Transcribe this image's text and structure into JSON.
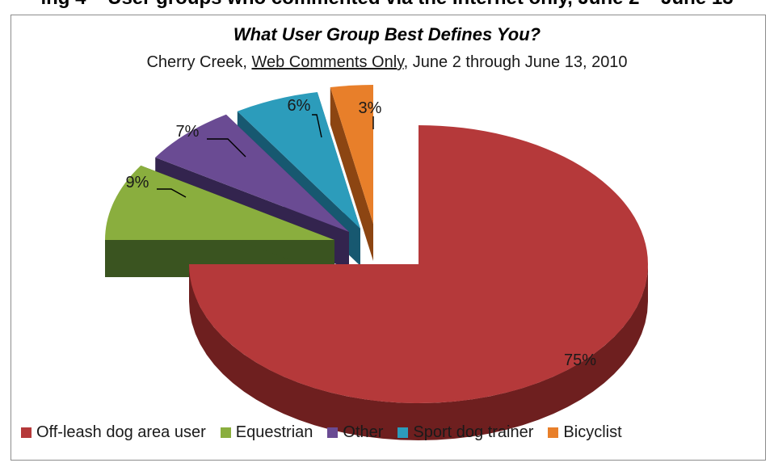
{
  "caption": "ing 4 – User groups who commented via the Internet only, June 2 – June 13",
  "chart_data": {
    "type": "pie",
    "title": "What User Group Best Defines You?",
    "subtitle": {
      "prefix": "Cherry Creek, ",
      "underlined": "Web Comments Only",
      "suffix": ", June 2 through June 13, 2010"
    },
    "categories": [
      "Off-leash dog area user",
      "Equestrian",
      "Other",
      "Sport dog trainer",
      "Bicyclist"
    ],
    "values": [
      75,
      9,
      7,
      6,
      3
    ],
    "labels": [
      "75%",
      "9%",
      "7%",
      "6%",
      "3%"
    ],
    "colors": [
      "#b5393a",
      "#8aae3e",
      "#6a4b93",
      "#2c9cbb",
      "#e87f2a"
    ],
    "side_colors": [
      "#6e1f1f",
      "#3a5420",
      "#33244e",
      "#175870",
      "#8c4512"
    ],
    "exploded": true,
    "three_d": true,
    "legend_position": "bottom"
  }
}
